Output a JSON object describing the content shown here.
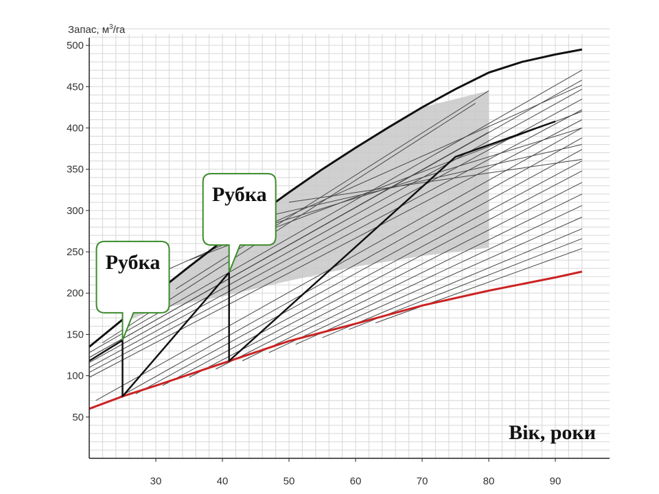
{
  "chart_data": {
    "type": "line",
    "ylabel_prefix": "Запас, м",
    "ylabel_sup": "3",
    "ylabel_suffix": "/га",
    "xlabel": "Вік, роки",
    "xlim": [
      20,
      95
    ],
    "ylim": [
      0,
      530
    ],
    "xticks": [
      30,
      40,
      50,
      60,
      70,
      80,
      90
    ],
    "yticks": [
      50,
      100,
      150,
      200,
      250,
      300,
      350,
      400,
      450,
      500
    ],
    "grid": true,
    "colors": {
      "upper": "#111111",
      "lower": "#cc2222",
      "fan": "#444444",
      "zone": "#c8c8c8",
      "callout_border": "#3a8a2a",
      "grid": "#d6d6d6"
    },
    "upper_bound": {
      "x": [
        20,
        25,
        30,
        35,
        40,
        45,
        50,
        55,
        60,
        65,
        70,
        75,
        80,
        85,
        90,
        94
      ],
      "y": [
        135,
        168,
        200,
        232,
        263,
        293,
        322,
        350,
        376,
        401,
        425,
        447,
        467,
        480,
        489,
        495
      ]
    },
    "lower_bound": {
      "x": [
        20,
        25,
        30,
        40,
        50,
        60,
        70,
        80,
        90,
        94
      ],
      "y": [
        60,
        75,
        88,
        115,
        142,
        163,
        185,
        203,
        219,
        226
      ]
    },
    "zone_polygon": {
      "x": [
        25,
        30,
        40,
        50,
        60,
        70,
        80,
        80,
        70,
        60,
        50,
        40,
        33,
        30,
        25
      ],
      "y": [
        168,
        200,
        263,
        322,
        376,
        425,
        445,
        255,
        245,
        232,
        215,
        196,
        185,
        180,
        165
      ]
    },
    "fan_lines": [
      {
        "x": [
          20,
          94
        ],
        "y": [
          128,
          470
        ]
      },
      {
        "x": [
          20,
          94
        ],
        "y": [
          122,
          458
        ]
      },
      {
        "x": [
          20,
          94
        ],
        "y": [
          116,
          447
        ]
      },
      {
        "x": [
          20,
          94
        ],
        "y": [
          110,
          435
        ]
      },
      {
        "x": [
          20,
          94
        ],
        "y": [
          104,
          422
        ]
      },
      {
        "x": [
          20,
          94
        ],
        "y": [
          98,
          410
        ]
      },
      {
        "x": [
          21,
          94
        ],
        "y": [
          70,
          400
        ]
      },
      {
        "x": [
          24,
          94
        ],
        "y": [
          72,
          388
        ]
      },
      {
        "x": [
          27,
          94
        ],
        "y": [
          78,
          374
        ]
      },
      {
        "x": [
          31,
          94
        ],
        "y": [
          88,
          360
        ]
      },
      {
        "x": [
          35,
          94
        ],
        "y": [
          98,
          348
        ]
      },
      {
        "x": [
          39,
          94
        ],
        "y": [
          108,
          334
        ]
      },
      {
        "x": [
          43,
          94
        ],
        "y": [
          118,
          320
        ]
      },
      {
        "x": [
          47,
          94
        ],
        "y": [
          128,
          306
        ]
      },
      {
        "x": [
          51,
          94
        ],
        "y": [
          138,
          292
        ]
      },
      {
        "x": [
          55,
          94
        ],
        "y": [
          146,
          278
        ]
      },
      {
        "x": [
          59,
          94
        ],
        "y": [
          156,
          266
        ]
      },
      {
        "x": [
          63,
          94
        ],
        "y": [
          164,
          254
        ]
      },
      {
        "x": [
          35,
          94
        ],
        "y": [
          240,
          420
        ]
      },
      {
        "x": [
          40,
          94
        ],
        "y": [
          265,
          400
        ]
      },
      {
        "x": [
          45,
          94
        ],
        "y": [
          290,
          380
        ]
      },
      {
        "x": [
          28,
          94
        ],
        "y": [
          215,
          452
        ]
      },
      {
        "x": [
          50,
          94
        ],
        "y": [
          310,
          362
        ]
      },
      {
        "x": [
          33,
          80
        ],
        "y": [
          205,
          445
        ]
      },
      {
        "x": [
          20,
          80
        ],
        "y": [
          122,
          395
        ]
      },
      {
        "x": [
          22,
          78
        ],
        "y": [
          140,
          430
        ]
      }
    ],
    "trajectories": [
      {
        "x": [
          20,
          25,
          25,
          41,
          41,
          75,
          90
        ],
        "y": [
          118,
          143,
          75,
          225,
          118,
          365,
          408
        ]
      }
    ],
    "callouts": [
      {
        "text": "Рубка",
        "x": 25,
        "y": 143
      },
      {
        "text": "Рубка",
        "x": 41,
        "y": 225
      }
    ]
  }
}
